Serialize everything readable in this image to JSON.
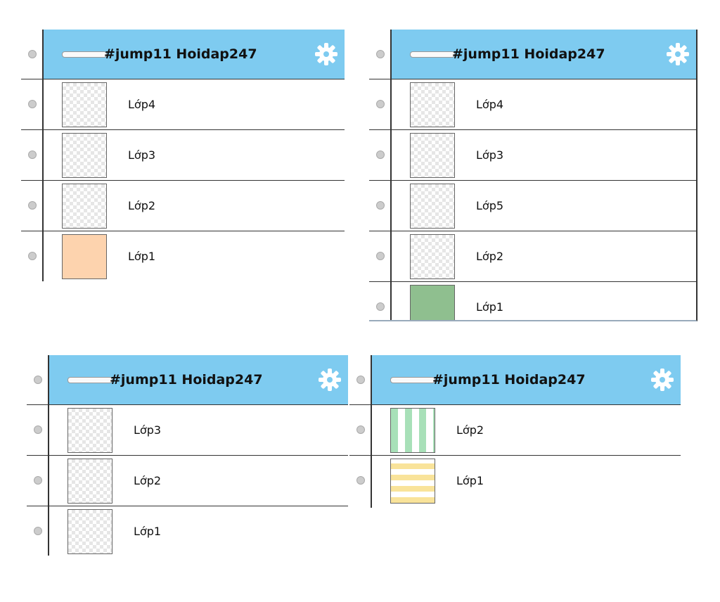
{
  "panels": [
    {
      "title": "#jump11 Hoidap247",
      "layers": [
        "Lớp4",
        "Lớp3",
        "Lớp2",
        "Lớp1"
      ]
    },
    {
      "title": "#jump11 Hoidap247",
      "layers": [
        "Lớp4",
        "Lớp3",
        "Lớp5",
        "Lớp2",
        "Lớp1"
      ]
    },
    {
      "title": "#jump11 Hoidap247",
      "layers": [
        "Lớp3",
        "Lớp2",
        "Lớp1"
      ]
    },
    {
      "title": "#jump11 Hoidap247",
      "layers": [
        "Lớp2",
        "Lớp1"
      ]
    }
  ]
}
